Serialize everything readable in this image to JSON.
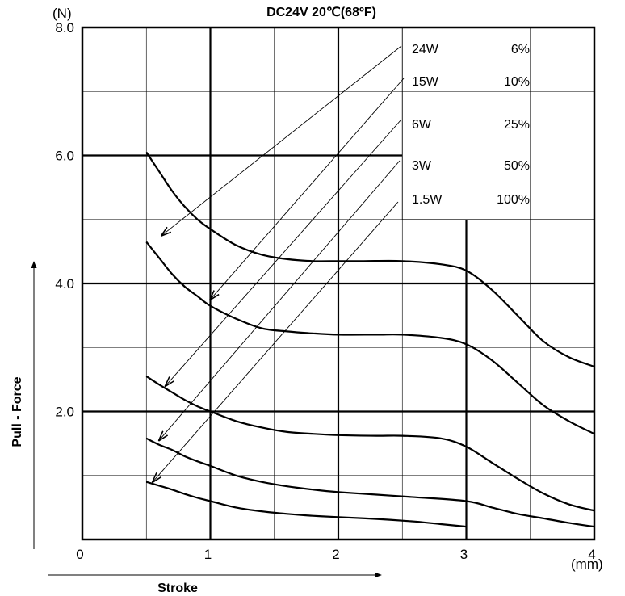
{
  "chart_data": {
    "type": "line",
    "title": "DC24V  20℃(68ºF)",
    "xlabel": "Stroke",
    "ylabel": "Pull - Force",
    "x_unit": "(mm)",
    "y_unit": "(N)",
    "xlim": [
      0,
      4
    ],
    "ylim": [
      0,
      8
    ],
    "x_ticks": [
      "0",
      "1",
      "2",
      "3",
      "4"
    ],
    "y_ticks": [
      "2.0",
      "4.0",
      "6.0",
      "8.0"
    ],
    "grid": true,
    "legend_position": "top-right",
    "series": [
      {
        "name": "24W",
        "duty": "6%",
        "points": [
          [
            0.5,
            6.05
          ],
          [
            0.6,
            5.75
          ],
          [
            0.7,
            5.45
          ],
          [
            0.8,
            5.2
          ],
          [
            0.9,
            5.0
          ],
          [
            1.0,
            4.85
          ],
          [
            1.2,
            4.6
          ],
          [
            1.4,
            4.45
          ],
          [
            1.6,
            4.38
          ],
          [
            1.8,
            4.35
          ],
          [
            2.0,
            4.35
          ],
          [
            2.2,
            4.35
          ],
          [
            2.5,
            4.35
          ],
          [
            2.8,
            4.3
          ],
          [
            3.0,
            4.2
          ],
          [
            3.2,
            3.9
          ],
          [
            3.4,
            3.5
          ],
          [
            3.6,
            3.1
          ],
          [
            3.8,
            2.85
          ],
          [
            4.0,
            2.7
          ]
        ]
      },
      {
        "name": "15W",
        "duty": "10%",
        "points": [
          [
            0.5,
            4.65
          ],
          [
            0.6,
            4.4
          ],
          [
            0.7,
            4.15
          ],
          [
            0.8,
            3.95
          ],
          [
            0.9,
            3.8
          ],
          [
            1.0,
            3.65
          ],
          [
            1.2,
            3.45
          ],
          [
            1.4,
            3.3
          ],
          [
            1.6,
            3.25
          ],
          [
            1.8,
            3.22
          ],
          [
            2.0,
            3.2
          ],
          [
            2.3,
            3.2
          ],
          [
            2.5,
            3.2
          ],
          [
            2.8,
            3.15
          ],
          [
            3.0,
            3.05
          ],
          [
            3.2,
            2.8
          ],
          [
            3.4,
            2.45
          ],
          [
            3.6,
            2.1
          ],
          [
            3.8,
            1.85
          ],
          [
            4.0,
            1.65
          ]
        ]
      },
      {
        "name": "6W",
        "duty": "25%",
        "points": [
          [
            0.5,
            2.55
          ],
          [
            0.6,
            2.42
          ],
          [
            0.7,
            2.3
          ],
          [
            0.8,
            2.18
          ],
          [
            0.9,
            2.08
          ],
          [
            1.0,
            2.0
          ],
          [
            1.2,
            1.85
          ],
          [
            1.4,
            1.75
          ],
          [
            1.6,
            1.68
          ],
          [
            1.8,
            1.65
          ],
          [
            2.0,
            1.63
          ],
          [
            2.3,
            1.62
          ],
          [
            2.5,
            1.62
          ],
          [
            2.8,
            1.58
          ],
          [
            3.0,
            1.45
          ],
          [
            3.2,
            1.2
          ],
          [
            3.4,
            0.95
          ],
          [
            3.6,
            0.72
          ],
          [
            3.8,
            0.55
          ],
          [
            4.0,
            0.45
          ]
        ]
      },
      {
        "name": "3W",
        "duty": "50%",
        "points": [
          [
            0.5,
            1.58
          ],
          [
            0.6,
            1.48
          ],
          [
            0.7,
            1.4
          ],
          [
            0.8,
            1.3
          ],
          [
            0.9,
            1.22
          ],
          [
            1.0,
            1.15
          ],
          [
            1.2,
            1.0
          ],
          [
            1.4,
            0.9
          ],
          [
            1.6,
            0.83
          ],
          [
            1.8,
            0.78
          ],
          [
            2.0,
            0.74
          ],
          [
            2.3,
            0.7
          ],
          [
            2.6,
            0.66
          ],
          [
            3.0,
            0.6
          ],
          [
            3.2,
            0.5
          ],
          [
            3.4,
            0.4
          ],
          [
            3.6,
            0.33
          ],
          [
            3.8,
            0.26
          ],
          [
            4.0,
            0.2
          ]
        ]
      },
      {
        "name": "1.5W",
        "duty": "100%",
        "points": [
          [
            0.5,
            0.9
          ],
          [
            0.6,
            0.84
          ],
          [
            0.7,
            0.78
          ],
          [
            0.8,
            0.71
          ],
          [
            0.9,
            0.65
          ],
          [
            1.0,
            0.6
          ],
          [
            1.2,
            0.5
          ],
          [
            1.4,
            0.44
          ],
          [
            1.6,
            0.4
          ],
          [
            1.8,
            0.37
          ],
          [
            2.0,
            0.35
          ],
          [
            2.3,
            0.32
          ],
          [
            2.6,
            0.28
          ],
          [
            2.8,
            0.24
          ],
          [
            3.0,
            0.2
          ]
        ]
      }
    ],
    "leaders": [
      {
        "series": "24W",
        "to": [
          0.62,
          4.75
        ]
      },
      {
        "series": "15W",
        "to": [
          1.0,
          3.75
        ]
      },
      {
        "series": "6W",
        "to": [
          0.65,
          2.4
        ]
      },
      {
        "series": "3W",
        "to": [
          0.6,
          1.55
        ]
      },
      {
        "series": "1.5W",
        "to": [
          0.55,
          0.9
        ]
      }
    ]
  }
}
